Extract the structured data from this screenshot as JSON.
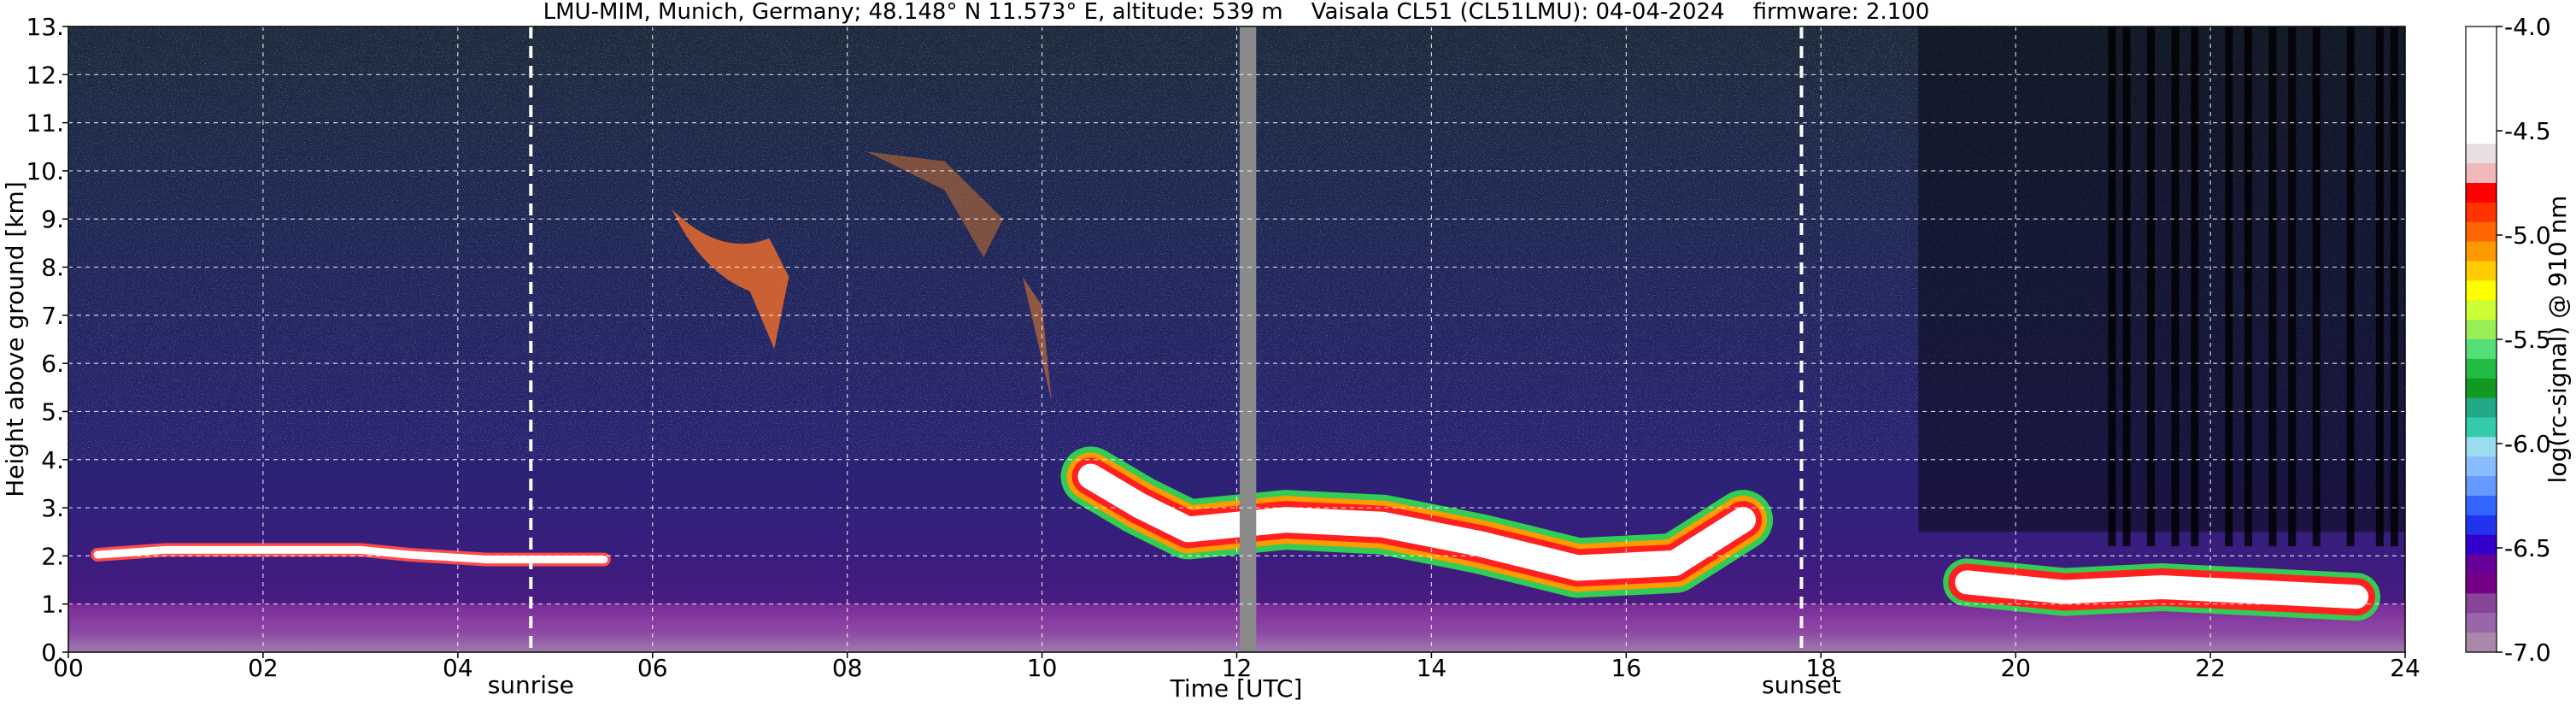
{
  "chart_data": {
    "type": "heatmap",
    "title": "LMU-MIM, Munich, Germany; 48.148° N 11.573° E, altitude: 539 m    Vaisala CL51 (CL51LMU): 04-04-2024    firmware: 2.100",
    "xlabel": "Time [UTC]",
    "ylabel": "Height above ground [km]",
    "xlim": [
      0,
      24
    ],
    "ylim": [
      0,
      13
    ],
    "x_ticks": [
      "00",
      "02",
      "04",
      "06",
      "08",
      "10",
      "12",
      "14",
      "16",
      "18",
      "20",
      "22",
      "24"
    ],
    "y_ticks": [
      "0.",
      "1.",
      "2.",
      "3.",
      "4.",
      "5.",
      "6.",
      "7.",
      "8.",
      "9.",
      "10.",
      "11.",
      "12.",
      "13."
    ],
    "grid": true,
    "colorbar": {
      "label": "log(rc-signal) @ 910 nm",
      "range": [
        -7.0,
        -4.0
      ],
      "ticks": [
        "-4.0",
        "-4.5",
        "-5.0",
        "-5.5",
        "-6.0",
        "-6.5",
        "-7.0"
      ],
      "colors": [
        "#ffffff",
        "#ffffff",
        "#ffffff",
        "#ffffff",
        "#ffffff",
        "#ffffff",
        "#e8e0e0",
        "#f0b8b8",
        "#ff0000",
        "#ff3300",
        "#ff6600",
        "#ff9900",
        "#ffcc00",
        "#ffff00",
        "#ccff33",
        "#99ee55",
        "#55dd77",
        "#22bb44",
        "#119922",
        "#22aa88",
        "#33ccaa",
        "#99ddee",
        "#88bbff",
        "#6699ff",
        "#3366ff",
        "#2233ee",
        "#3300cc",
        "#660099",
        "#770088",
        "#884499",
        "#9966aa",
        "#aa88aa"
      ]
    },
    "markers": [
      {
        "label": "sunrise",
        "x": 4.75
      },
      {
        "label": "sunset",
        "x": 17.8
      }
    ],
    "data_gap": {
      "x_start": 12.03,
      "x_end": 12.2
    },
    "features": {
      "cloud_base_km": [
        {
          "t": 0.3,
          "h": 2.0
        },
        {
          "t": 1.0,
          "h": 2.1
        },
        {
          "t": 2.0,
          "h": 2.1
        },
        {
          "t": 3.0,
          "h": 2.1
        },
        {
          "t": 3.5,
          "h": 2.0
        },
        {
          "t": 4.3,
          "h": 1.9
        },
        {
          "t": 5.5,
          "h": 1.9
        },
        {
          "t": 10.5,
          "h": 3.4
        },
        {
          "t": 11.0,
          "h": 2.8
        },
        {
          "t": 11.5,
          "h": 2.3
        },
        {
          "t": 12.5,
          "h": 2.5
        },
        {
          "t": 13.5,
          "h": 2.4
        },
        {
          "t": 14.5,
          "h": 2.0
        },
        {
          "t": 15.5,
          "h": 1.5
        },
        {
          "t": 16.5,
          "h": 1.6
        },
        {
          "t": 17.2,
          "h": 2.5
        },
        {
          "t": 19.5,
          "h": 1.3
        },
        {
          "t": 20.5,
          "h": 1.1
        },
        {
          "t": 21.5,
          "h": 1.2
        },
        {
          "t": 22.5,
          "h": 1.1
        },
        {
          "t": 23.5,
          "h": 1.0
        }
      ],
      "boundary_layer_top_km": 1.0
    }
  }
}
